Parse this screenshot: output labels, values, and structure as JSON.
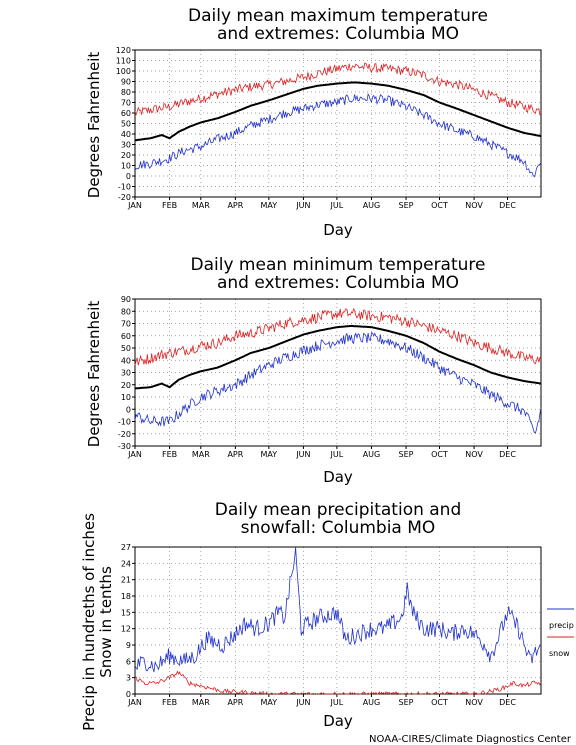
{
  "chart_data": [
    {
      "type": "line",
      "title_line1": "Daily mean maximum temperature",
      "title_line2": "and extremes: Columbia MO",
      "xlabel": "Day",
      "ylabel": "Degrees Fahrenheit",
      "ylim": [
        -20,
        120
      ],
      "yticks": [
        -20,
        -10,
        0,
        10,
        20,
        30,
        40,
        50,
        60,
        70,
        80,
        90,
        100,
        110,
        120
      ],
      "xlim": [
        1,
        365
      ],
      "xticks": [
        1,
        32,
        60,
        91,
        121,
        152,
        182,
        213,
        244,
        274,
        305,
        335
      ],
      "xticklabels": [
        "JAN",
        "FEB",
        "MAR",
        "APR",
        "MAY",
        "JUN",
        "JUL",
        "AUG",
        "SEP",
        "OCT",
        "NOV",
        "DEC"
      ],
      "grid": true,
      "series": [
        {
          "role": "record-high",
          "color": "#dd2222",
          "day": [
            1,
            15,
            32,
            45,
            60,
            75,
            91,
            105,
            121,
            135,
            152,
            165,
            182,
            195,
            213,
            228,
            244,
            260,
            274,
            290,
            305,
            320,
            335,
            350,
            365
          ],
          "values": [
            60,
            63,
            66,
            70,
            74,
            78,
            82,
            85,
            87,
            90,
            94,
            98,
            102,
            105,
            103,
            102,
            100,
            96,
            90,
            87,
            82,
            76,
            70,
            66,
            62
          ]
        },
        {
          "role": "mean-max",
          "color": "#000000",
          "day": [
            1,
            15,
            25,
            32,
            40,
            50,
            60,
            75,
            91,
            105,
            121,
            135,
            152,
            165,
            182,
            195,
            200,
            213,
            228,
            244,
            260,
            274,
            290,
            305,
            320,
            335,
            350,
            365
          ],
          "values": [
            34,
            36,
            39,
            36,
            42,
            47,
            51,
            55,
            61,
            67,
            72,
            77,
            83,
            86,
            88,
            89,
            89,
            88,
            86,
            82,
            77,
            70,
            64,
            58,
            52,
            46,
            41,
            38
          ]
        },
        {
          "role": "record-low-max",
          "color": "#2233cc",
          "day": [
            1,
            15,
            32,
            45,
            60,
            75,
            91,
            105,
            121,
            135,
            152,
            165,
            182,
            195,
            213,
            228,
            244,
            260,
            274,
            290,
            305,
            320,
            335,
            350,
            358,
            365
          ],
          "values": [
            10,
            12,
            17,
            24,
            28,
            35,
            41,
            48,
            54,
            60,
            64,
            68,
            70,
            74,
            74,
            72,
            66,
            58,
            50,
            43,
            38,
            30,
            22,
            14,
            0,
            15
          ]
        }
      ]
    },
    {
      "type": "line",
      "title_line1": "Daily mean minimum temperature",
      "title_line2": "and extremes: Columbia MO",
      "xlabel": "Day",
      "ylabel": "Degrees Fahrenheit",
      "ylim": [
        -30,
        90
      ],
      "yticks": [
        -30,
        -20,
        -10,
        0,
        10,
        20,
        30,
        40,
        50,
        60,
        70,
        80,
        90
      ],
      "xlim": [
        1,
        365
      ],
      "xticks": [
        1,
        32,
        60,
        91,
        121,
        152,
        182,
        213,
        244,
        274,
        305,
        335
      ],
      "xticklabels": [
        "JAN",
        "FEB",
        "MAR",
        "APR",
        "MAY",
        "JUN",
        "JUL",
        "AUG",
        "SEP",
        "OCT",
        "NOV",
        "DEC"
      ],
      "grid": true,
      "series": [
        {
          "role": "record-high-min",
          "color": "#dd2222",
          "day": [
            1,
            15,
            32,
            45,
            60,
            75,
            91,
            105,
            121,
            135,
            152,
            165,
            182,
            195,
            213,
            228,
            244,
            260,
            274,
            290,
            305,
            320,
            335,
            350,
            365
          ],
          "values": [
            38,
            42,
            46,
            48,
            52,
            54,
            60,
            62,
            66,
            70,
            73,
            75,
            78,
            78,
            76,
            75,
            72,
            68,
            64,
            60,
            54,
            50,
            46,
            42,
            40
          ]
        },
        {
          "role": "mean-min",
          "color": "#000000",
          "day": [
            1,
            15,
            25,
            32,
            40,
            50,
            60,
            75,
            91,
            105,
            121,
            135,
            152,
            165,
            182,
            195,
            213,
            228,
            244,
            260,
            274,
            290,
            305,
            320,
            335,
            350,
            365
          ],
          "values": [
            17,
            18,
            21,
            18,
            24,
            28,
            31,
            34,
            40,
            46,
            50,
            55,
            61,
            64,
            67,
            68,
            67,
            64,
            60,
            54,
            47,
            41,
            36,
            30,
            26,
            23,
            21
          ]
        },
        {
          "role": "record-low-min",
          "color": "#2233cc",
          "day": [
            1,
            15,
            32,
            45,
            60,
            75,
            91,
            105,
            121,
            135,
            152,
            165,
            182,
            195,
            213,
            228,
            244,
            260,
            274,
            290,
            305,
            320,
            335,
            350,
            360,
            365
          ],
          "values": [
            -5,
            -10,
            -10,
            0,
            10,
            15,
            20,
            28,
            36,
            42,
            48,
            52,
            56,
            58,
            58,
            56,
            50,
            42,
            34,
            26,
            20,
            12,
            5,
            -2,
            -20,
            0
          ]
        }
      ]
    },
    {
      "type": "line",
      "title_line1": "Daily mean precipitation and",
      "title_line2": "snowfall: Columbia MO",
      "xlabel": "Day",
      "ylabel_line1": "Precip in hundreths of inches",
      "ylabel_line2": "Snow in tenths",
      "ylim": [
        0,
        27
      ],
      "yticks": [
        0,
        3,
        6,
        9,
        12,
        15,
        18,
        21,
        24,
        27
      ],
      "xlim": [
        1,
        365
      ],
      "xticks": [
        1,
        32,
        60,
        91,
        121,
        152,
        182,
        213,
        244,
        274,
        305,
        335
      ],
      "xticklabels": [
        "JAN",
        "FEB",
        "MAR",
        "APR",
        "MAY",
        "JUN",
        "JUL",
        "AUG",
        "SEP",
        "OCT",
        "NOV",
        "DEC"
      ],
      "grid": true,
      "legend": "right",
      "series": [
        {
          "name": "precip",
          "color": "#2233cc",
          "day": [
            1,
            10,
            20,
            32,
            45,
            55,
            65,
            80,
            91,
            100,
            110,
            121,
            130,
            135,
            140,
            145,
            150,
            165,
            182,
            190,
            200,
            213,
            225,
            240,
            245,
            250,
            260,
            274,
            285,
            295,
            305,
            315,
            320,
            330,
            335,
            345,
            355,
            365
          ],
          "values": [
            5,
            6,
            5,
            7,
            6,
            7,
            10,
            9,
            11,
            13,
            12,
            13,
            15,
            14,
            20,
            26,
            12,
            14,
            15,
            10,
            11,
            12,
            12,
            14,
            19,
            15,
            12,
            12,
            11,
            12,
            11,
            9,
            7,
            12,
            15,
            12,
            6,
            9
          ]
        },
        {
          "name": "snow",
          "color": "#dd2222",
          "day": [
            1,
            10,
            20,
            32,
            40,
            50,
            60,
            70,
            80,
            91,
            100,
            110,
            121,
            200,
            305,
            320,
            330,
            340,
            350,
            358,
            365
          ],
          "values": [
            3,
            2,
            2,
            3,
            4,
            2,
            1.5,
            1,
            0.5,
            0.4,
            0.3,
            0.1,
            0,
            0,
            0,
            0.5,
            1,
            2,
            1.5,
            2,
            2
          ]
        }
      ]
    }
  ],
  "credit": "NOAA-CIRES/Climate Diagnostics Center"
}
